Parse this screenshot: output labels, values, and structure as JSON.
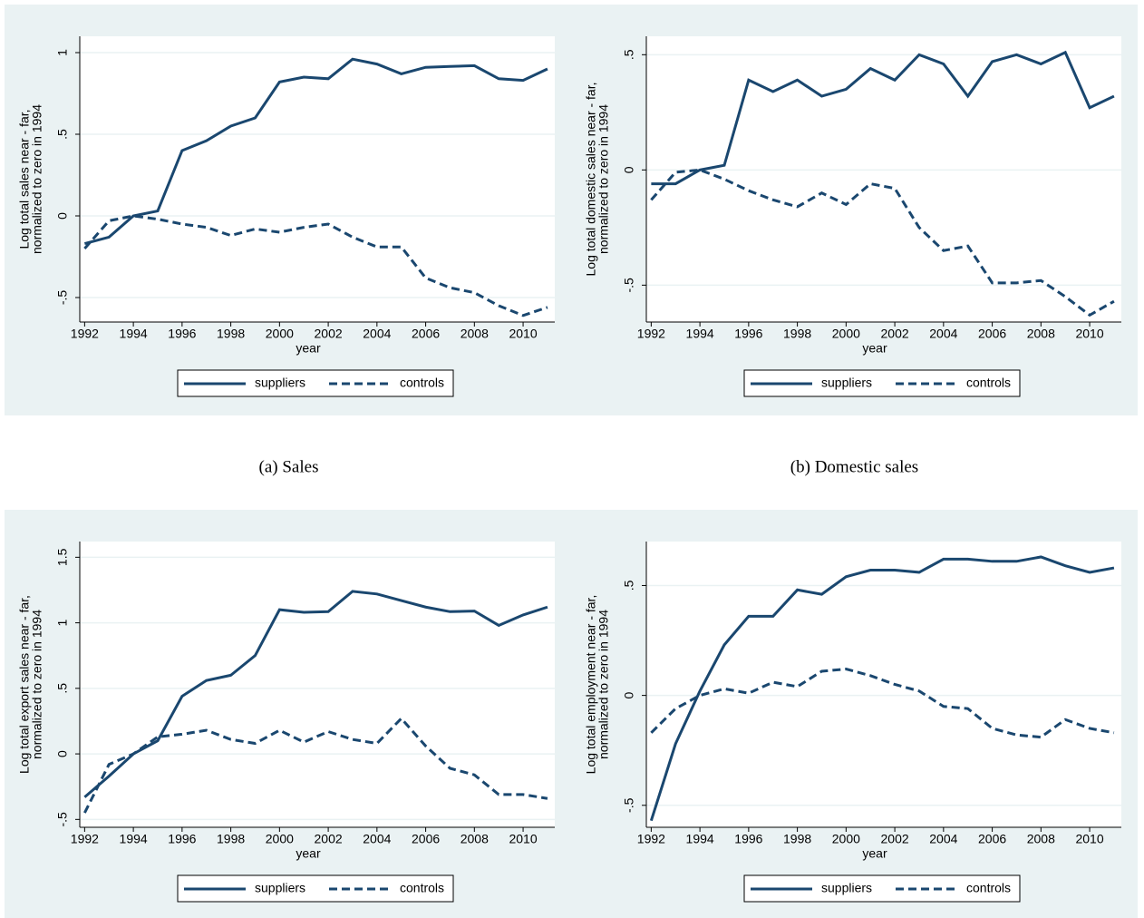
{
  "chart_data": [
    {
      "type": "line",
      "caption": "(a) Sales",
      "xlabel": "year",
      "ylabel": [
        "Log total sales near - far,",
        "normalized to zero in 1994"
      ],
      "x": [
        1992,
        1993,
        1994,
        1995,
        1996,
        1997,
        1998,
        1999,
        2000,
        2001,
        2002,
        2003,
        2004,
        2005,
        2006,
        2007,
        2008,
        2009,
        2010,
        2011
      ],
      "series": [
        {
          "name": "suppliers",
          "color": "#1a476f",
          "dash": "solid",
          "values": [
            -0.17,
            -0.13,
            0,
            0.03,
            0.4,
            0.46,
            0.55,
            0.6,
            0.82,
            0.85,
            0.84,
            0.96,
            0.93,
            0.87,
            0.91,
            0.915,
            0.92,
            0.84,
            0.83,
            0.9
          ]
        },
        {
          "name": "controls",
          "color": "#1a476f",
          "dash": "dashed",
          "values": [
            -0.2,
            -0.03,
            0,
            -0.02,
            -0.05,
            -0.07,
            -0.12,
            -0.08,
            -0.1,
            -0.07,
            -0.05,
            -0.13,
            -0.19,
            -0.19,
            -0.38,
            -0.44,
            -0.47,
            -0.55,
            -0.61,
            -0.56
          ]
        }
      ],
      "xlim": [
        1991.8,
        2011.3
      ],
      "xticks": [
        1992,
        1994,
        1996,
        1998,
        2000,
        2002,
        2004,
        2006,
        2008,
        2010
      ],
      "ylim": [
        -0.65,
        1.1
      ],
      "yticks": [
        {
          "value": -0.5,
          "label": "-.5"
        },
        0,
        {
          "value": 0.5,
          "label": ".5"
        },
        1
      ],
      "grid": true
    },
    {
      "type": "line",
      "caption": "(b) Domestic sales",
      "xlabel": "year",
      "ylabel": [
        "Log total domestic sales near - far,",
        "normalized to zero in 1994"
      ],
      "x": [
        1992,
        1993,
        1994,
        1995,
        1996,
        1997,
        1998,
        1999,
        2000,
        2001,
        2002,
        2003,
        2004,
        2005,
        2006,
        2007,
        2008,
        2009,
        2010,
        2011
      ],
      "series": [
        {
          "name": "suppliers",
          "color": "#1a476f",
          "dash": "solid",
          "values": [
            -0.06,
            -0.06,
            0,
            0.02,
            0.39,
            0.34,
            0.39,
            0.32,
            0.35,
            0.44,
            0.39,
            0.5,
            0.46,
            0.32,
            0.47,
            0.5,
            0.46,
            0.51,
            0.27,
            0.32
          ]
        },
        {
          "name": "controls",
          "color": "#1a476f",
          "dash": "dashed",
          "values": [
            -0.13,
            -0.01,
            0,
            -0.04,
            -0.09,
            -0.13,
            -0.16,
            -0.1,
            -0.15,
            -0.06,
            -0.08,
            -0.25,
            -0.35,
            -0.33,
            -0.49,
            -0.49,
            -0.48,
            -0.55,
            -0.63,
            -0.57
          ]
        }
      ],
      "xlim": [
        1991.8,
        2011.3
      ],
      "xticks": [
        1992,
        1994,
        1996,
        1998,
        2000,
        2002,
        2004,
        2006,
        2008,
        2010
      ],
      "ylim": [
        -0.66,
        0.58
      ],
      "yticks": [
        {
          "value": -0.5,
          "label": "-.5"
        },
        0,
        {
          "value": 0.5,
          "label": ".5"
        }
      ],
      "grid": true
    },
    {
      "type": "line",
      "caption": null,
      "xlabel": "year",
      "ylabel": [
        "Log total export sales near - far,",
        "normalized to zero in 1994"
      ],
      "x": [
        1992,
        1993,
        1994,
        1995,
        1996,
        1997,
        1998,
        1999,
        2000,
        2001,
        2002,
        2003,
        2004,
        2005,
        2006,
        2007,
        2008,
        2009,
        2010,
        2011
      ],
      "series": [
        {
          "name": "suppliers",
          "color": "#1a476f",
          "dash": "solid",
          "values": [
            -0.33,
            -0.17,
            0,
            0.1,
            0.44,
            0.56,
            0.6,
            0.75,
            1.1,
            1.08,
            1.085,
            1.24,
            1.22,
            1.17,
            1.12,
            1.085,
            1.09,
            0.98,
            1.06,
            1.12
          ]
        },
        {
          "name": "controls",
          "color": "#1a476f",
          "dash": "dashed",
          "values": [
            -0.45,
            -0.08,
            0,
            0.13,
            0.15,
            0.18,
            0.11,
            0.08,
            0.18,
            0.09,
            0.17,
            0.11,
            0.08,
            0.27,
            0.06,
            -0.11,
            -0.16,
            -0.31,
            -0.31,
            -0.34
          ]
        }
      ],
      "xlim": [
        1991.8,
        2011.3
      ],
      "xticks": [
        1992,
        1994,
        1996,
        1998,
        2000,
        2002,
        2004,
        2006,
        2008,
        2010
      ],
      "ylim": [
        -0.56,
        1.62
      ],
      "yticks": [
        {
          "value": -0.5,
          "label": "-.5"
        },
        0,
        {
          "value": 0.5,
          "label": ".5"
        },
        1,
        1.5
      ],
      "grid": true
    },
    {
      "type": "line",
      "caption": null,
      "xlabel": "year",
      "ylabel": [
        "Log total employment near - far,",
        "normalized to zero in 1994"
      ],
      "x": [
        1992,
        1993,
        1994,
        1995,
        1996,
        1997,
        1998,
        1999,
        2000,
        2001,
        2002,
        2003,
        2004,
        2005,
        2006,
        2007,
        2008,
        2009,
        2010,
        2011
      ],
      "series": [
        {
          "name": "suppliers",
          "color": "#1a476f",
          "dash": "solid",
          "values": [
            -0.57,
            -0.22,
            0.02,
            0.23,
            0.36,
            0.36,
            0.48,
            0.46,
            0.54,
            0.57,
            0.57,
            0.56,
            0.62,
            0.62,
            0.61,
            0.61,
            0.63,
            0.59,
            0.56,
            0.58
          ]
        },
        {
          "name": "controls",
          "color": "#1a476f",
          "dash": "dashed",
          "values": [
            -0.17,
            -0.06,
            0,
            0.03,
            0.01,
            0.06,
            0.04,
            0.11,
            0.12,
            0.09,
            0.05,
            0.02,
            -0.05,
            -0.06,
            -0.15,
            -0.18,
            -0.19,
            -0.11,
            -0.15,
            -0.17
          ]
        }
      ],
      "xlim": [
        1991.8,
        2011.3
      ],
      "xticks": [
        1992,
        1994,
        1996,
        1998,
        2000,
        2002,
        2004,
        2006,
        2008,
        2010
      ],
      "ylim": [
        -0.6,
        0.7
      ],
      "yticks": [
        {
          "value": -0.5,
          "label": "-.5"
        },
        0,
        {
          "value": 0.5,
          "label": ".5"
        }
      ],
      "grid": true
    }
  ]
}
